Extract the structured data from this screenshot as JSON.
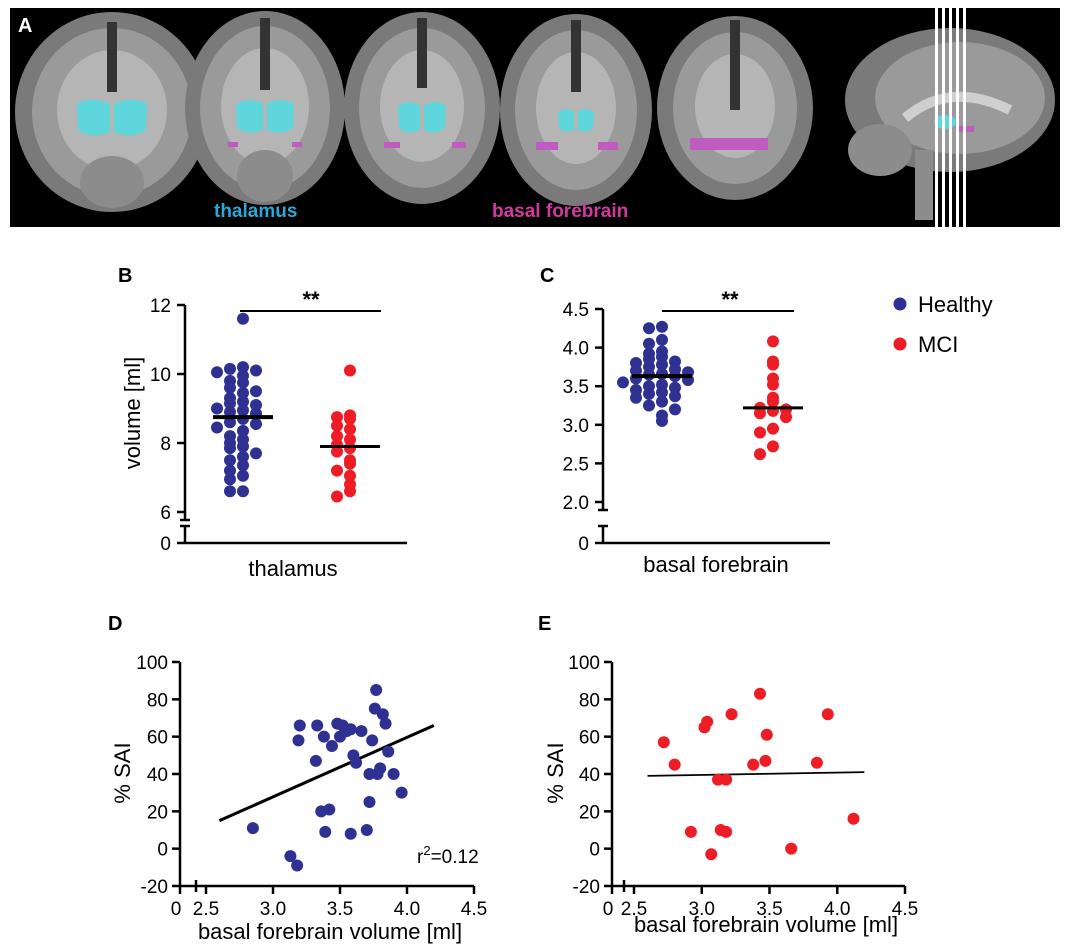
{
  "colors": {
    "healthy": "#2e3192",
    "mci": "#ee1c24",
    "thalamus": "#5fd6db",
    "basal_forebrain": "#c05bc0",
    "thalamus_label": "#2aa7d6",
    "basal_forebrain_label": "#d23aa0",
    "mri_background": "#000000",
    "axis": "#000000"
  },
  "panels": {
    "A": {
      "letter": "A",
      "labels": {
        "thalamus": "thalamus",
        "basal_forebrain": "basal forebrain"
      }
    },
    "B": {
      "letter": "B"
    },
    "C": {
      "letter": "C"
    },
    "D": {
      "letter": "D"
    },
    "E": {
      "letter": "E"
    }
  },
  "legend": {
    "position": "right of panel C",
    "entries": [
      "Healthy",
      "MCI"
    ]
  },
  "chart_data": [
    {
      "panel": "B",
      "type": "scatter",
      "xlabel": "thalamus",
      "ylabel": "volume [ml]",
      "ylim": [
        6,
        12
      ],
      "yticks": [
        6,
        8,
        10,
        12
      ],
      "axis_break_value": 0,
      "significance": "**",
      "series": [
        {
          "name": "Healthy",
          "mean": 8.75,
          "values": [
            11.6,
            10.2,
            10.15,
            10.1,
            10.05,
            9.95,
            9.8,
            9.75,
            9.6,
            9.5,
            9.45,
            9.3,
            9.2,
            9.15,
            9.1,
            9.0,
            8.95,
            8.9,
            8.85,
            8.7,
            8.6,
            8.55,
            8.45,
            8.35,
            8.2,
            8.1,
            8.0,
            7.9,
            7.85,
            7.7,
            7.6,
            7.5,
            7.35,
            7.2,
            7.05,
            6.95,
            6.6,
            6.6
          ]
        },
        {
          "name": "MCI",
          "mean": 7.9,
          "values": [
            10.1,
            8.8,
            8.75,
            8.7,
            8.5,
            8.4,
            8.2,
            8.1,
            7.95,
            7.85,
            7.75,
            7.5,
            7.4,
            7.2,
            7.05,
            6.8,
            6.6,
            6.45
          ]
        }
      ]
    },
    {
      "panel": "C",
      "type": "scatter",
      "xlabel": "basal forebrain",
      "ylabel": "",
      "ylim": [
        2.0,
        4.5
      ],
      "yticks": [
        "2.0",
        "2.5",
        "3.0",
        "3.5",
        "4.0",
        "4.5"
      ],
      "axis_break_value": 0,
      "significance": "**",
      "series": [
        {
          "name": "Healthy",
          "mean": 3.63,
          "values": [
            4.27,
            4.25,
            4.1,
            4.05,
            3.95,
            3.92,
            3.88,
            3.85,
            3.82,
            3.8,
            3.78,
            3.75,
            3.72,
            3.7,
            3.68,
            3.66,
            3.65,
            3.63,
            3.6,
            3.58,
            3.55,
            3.52,
            3.5,
            3.48,
            3.45,
            3.42,
            3.4,
            3.37,
            3.35,
            3.3,
            3.25,
            3.2,
            3.12,
            3.05
          ]
        },
        {
          "name": "MCI",
          "mean": 3.22,
          "values": [
            4.08,
            3.82,
            3.78,
            3.6,
            3.52,
            3.35,
            3.3,
            3.22,
            3.2,
            3.18,
            3.15,
            3.1,
            2.95,
            2.9,
            2.72,
            2.62
          ]
        }
      ]
    },
    {
      "panel": "D",
      "type": "scatter",
      "xlabel": "basal forebrain volume [ml]",
      "ylabel": "% SAI",
      "xlim": [
        2.5,
        4.5
      ],
      "ylim": [
        -20,
        100
      ],
      "xticks": [
        "2.5",
        "3.0",
        "3.5",
        "4.0",
        "4.5"
      ],
      "yticks": [
        "-20",
        "0",
        "20",
        "40",
        "60",
        "80",
        "100"
      ],
      "axis_break_value": 0,
      "annotation": "r²=0.12",
      "annotation_parts": {
        "r": "r",
        "sup": "2",
        "rest": "=0.12"
      },
      "fit_line": {
        "x": [
          2.6,
          4.2
        ],
        "y": [
          15,
          66
        ]
      },
      "series": [
        {
          "name": "Healthy",
          "points": [
            [
              2.85,
              11
            ],
            [
              3.13,
              -4
            ],
            [
              3.18,
              -9
            ],
            [
              3.2,
              66
            ],
            [
              3.19,
              58
            ],
            [
              3.33,
              66
            ],
            [
              3.36,
              20
            ],
            [
              3.38,
              60
            ],
            [
              3.42,
              21
            ],
            [
              3.44,
              55
            ],
            [
              3.48,
              67
            ],
            [
              3.52,
              66
            ],
            [
              3.5,
              60
            ],
            [
              3.55,
              63
            ],
            [
              3.58,
              64
            ],
            [
              3.6,
              50
            ],
            [
              3.62,
              46
            ],
            [
              3.58,
              8
            ],
            [
              3.66,
              63
            ],
            [
              3.7,
              10
            ],
            [
              3.72,
              25
            ],
            [
              3.72,
              40
            ],
            [
              3.74,
              58
            ],
            [
              3.76,
              75
            ],
            [
              3.77,
              85
            ],
            [
              3.78,
              40
            ],
            [
              3.8,
              43
            ],
            [
              3.82,
              72
            ],
            [
              3.84,
              67
            ],
            [
              3.86,
              52
            ],
            [
              3.9,
              40
            ],
            [
              3.96,
              30
            ],
            [
              3.32,
              47
            ],
            [
              3.39,
              9
            ]
          ]
        }
      ]
    },
    {
      "panel": "E",
      "type": "scatter",
      "xlabel": "basal forebrain volume [ml]",
      "ylabel": "% SAI",
      "xlim": [
        2.5,
        4.5
      ],
      "ylim": [
        -20,
        100
      ],
      "xticks": [
        "2.5",
        "3.0",
        "3.5",
        "4.0",
        "4.5"
      ],
      "yticks": [
        "-20",
        "0",
        "20",
        "40",
        "60",
        "80",
        "100"
      ],
      "axis_break_value": 0,
      "fit_line": {
        "x": [
          2.6,
          4.2
        ],
        "y": [
          39,
          41
        ]
      },
      "series": [
        {
          "name": "MCI",
          "points": [
            [
              2.72,
              57
            ],
            [
              2.8,
              45
            ],
            [
              2.92,
              9
            ],
            [
              3.02,
              65
            ],
            [
              3.04,
              68
            ],
            [
              3.07,
              -3
            ],
            [
              3.12,
              37
            ],
            [
              3.14,
              10
            ],
            [
              3.18,
              37
            ],
            [
              3.18,
              9
            ],
            [
              3.22,
              72
            ],
            [
              3.38,
              45
            ],
            [
              3.43,
              83
            ],
            [
              3.47,
              47
            ],
            [
              3.48,
              61
            ],
            [
              3.66,
              0
            ],
            [
              3.85,
              46
            ],
            [
              3.93,
              72
            ],
            [
              4.12,
              16
            ]
          ]
        }
      ]
    }
  ]
}
